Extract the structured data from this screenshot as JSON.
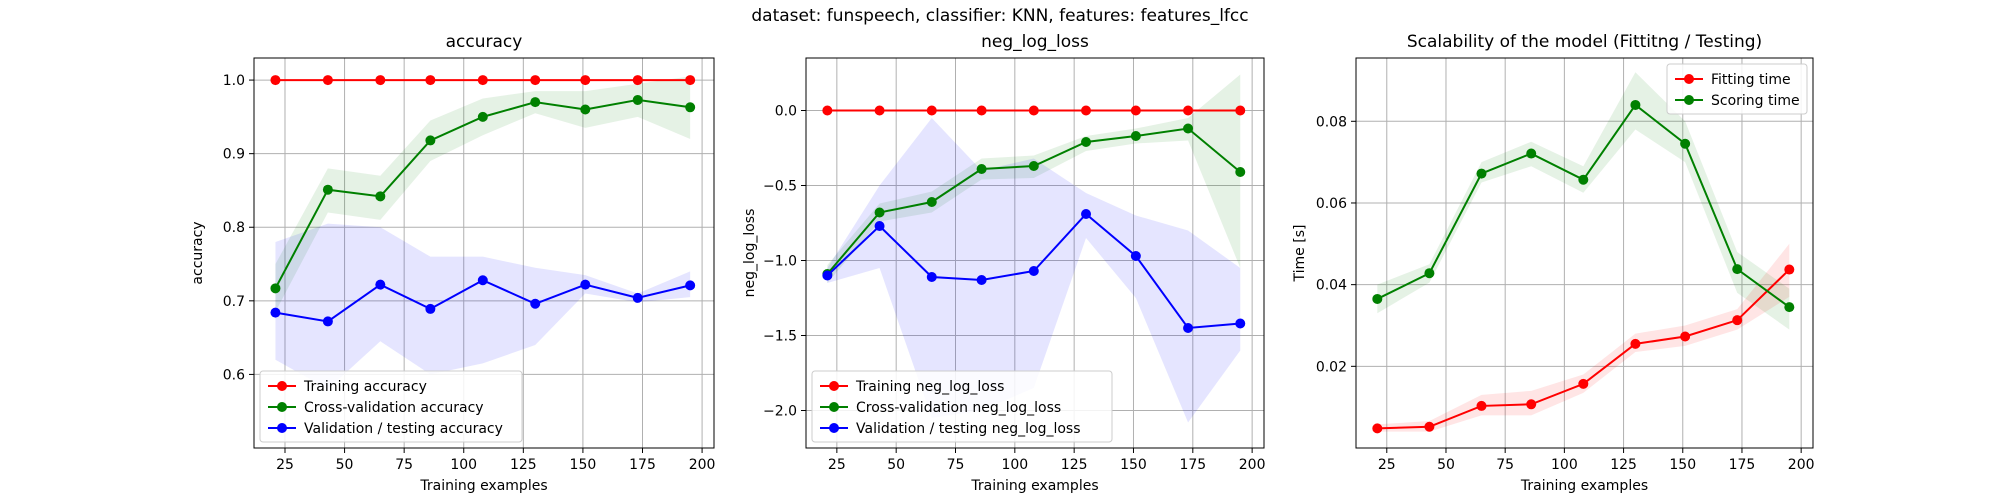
{
  "suptitle": "dataset: funspeech, classifier: KNN, features: features_lfcc",
  "chart_data": [
    {
      "type": "line",
      "title": "accuracy",
      "xlabel": "Training examples",
      "ylabel": "accuracy",
      "xlim": [
        12,
        205
      ],
      "ylim": [
        0.5,
        1.03
      ],
      "xticks": [
        25,
        50,
        75,
        100,
        125,
        150,
        175,
        200
      ],
      "yticks": [
        0.6,
        0.7,
        0.8,
        0.9,
        1.0
      ],
      "ytick_labels": [
        "0.6",
        "0.7",
        "0.8",
        "0.9",
        "1.0"
      ],
      "grid": true,
      "legend_position": "lower-left",
      "x": [
        21,
        43,
        65,
        86,
        108,
        130,
        151,
        173,
        195
      ],
      "series": [
        {
          "name": "Training accuracy",
          "color": "#ff0000",
          "values": [
            1.0,
            1.0,
            1.0,
            1.0,
            1.0,
            1.0,
            1.0,
            1.0,
            1.0
          ],
          "band_upper": [
            1.0,
            1.0,
            1.0,
            1.0,
            1.0,
            1.0,
            1.0,
            1.0,
            1.0
          ],
          "band_lower": [
            1.0,
            1.0,
            1.0,
            1.0,
            1.0,
            1.0,
            1.0,
            1.0,
            1.0
          ]
        },
        {
          "name": "Cross-validation accuracy",
          "color": "#008000",
          "values": [
            0.717,
            0.851,
            0.842,
            0.918,
            0.95,
            0.97,
            0.96,
            0.973,
            0.963
          ],
          "band_upper": [
            0.75,
            0.88,
            0.87,
            0.945,
            0.975,
            0.985,
            0.985,
            0.995,
            1.005
          ],
          "band_lower": [
            0.685,
            0.82,
            0.81,
            0.89,
            0.925,
            0.955,
            0.935,
            0.95,
            0.92
          ]
        },
        {
          "name": "Validation / testing accuracy",
          "color": "#0000ff",
          "values": [
            0.684,
            0.672,
            0.722,
            0.689,
            0.728,
            0.696,
            0.722,
            0.704,
            0.721
          ],
          "band_upper": [
            0.78,
            0.805,
            0.8,
            0.76,
            0.76,
            0.745,
            0.735,
            0.71,
            0.74
          ],
          "band_lower": [
            0.62,
            0.58,
            0.645,
            0.6,
            0.615,
            0.64,
            0.71,
            0.698,
            0.705
          ]
        }
      ]
    },
    {
      "type": "line",
      "title": "neg_log_loss",
      "xlabel": "Training examples",
      "ylabel": "neg_log_loss",
      "xlim": [
        12,
        205
      ],
      "ylim": [
        -2.25,
        0.35
      ],
      "xticks": [
        25,
        50,
        75,
        100,
        125,
        150,
        175,
        200
      ],
      "yticks": [
        -2.0,
        -1.5,
        -1.0,
        -0.5,
        0.0
      ],
      "ytick_labels": [
        "−2.0",
        "−1.5",
        "−1.0",
        "−0.5",
        "0.0"
      ],
      "grid": true,
      "legend_position": "lower-left",
      "x": [
        21,
        43,
        65,
        86,
        108,
        130,
        151,
        173,
        195
      ],
      "series": [
        {
          "name": "Training neg_log_loss",
          "color": "#ff0000",
          "values": [
            0,
            0,
            0,
            0,
            0,
            0,
            0,
            0,
            0
          ],
          "band_upper": [
            0,
            0,
            0,
            0,
            0,
            0,
            0,
            0,
            0
          ],
          "band_lower": [
            0,
            0,
            0,
            0,
            0,
            0,
            0,
            0,
            0
          ]
        },
        {
          "name": "Cross-validation neg_log_loss",
          "color": "#008000",
          "values": [
            -1.09,
            -0.68,
            -0.61,
            -0.39,
            -0.37,
            -0.21,
            -0.17,
            -0.12,
            -0.41
          ],
          "band_upper": [
            -1.03,
            -0.62,
            -0.54,
            -0.32,
            -0.3,
            -0.17,
            -0.12,
            -0.05,
            0.24
          ],
          "band_lower": [
            -1.15,
            -0.74,
            -0.68,
            -0.46,
            -0.45,
            -0.27,
            -0.22,
            -0.2,
            -1.05
          ]
        },
        {
          "name": "Validation / testing neg_log_loss",
          "color": "#0000ff",
          "values": [
            -1.1,
            -0.77,
            -1.11,
            -1.13,
            -1.07,
            -0.69,
            -0.97,
            -1.45,
            -1.42
          ],
          "band_upper": [
            -1.05,
            -0.5,
            -0.05,
            -0.4,
            -0.32,
            -0.55,
            -0.7,
            -0.8,
            -1.05
          ],
          "band_lower": [
            -1.15,
            -1.05,
            -2.05,
            -2.0,
            -1.85,
            -0.85,
            -1.25,
            -2.08,
            -1.6
          ]
        }
      ]
    },
    {
      "type": "line",
      "title": "Scalability of the model (Fittitng / Testing)",
      "xlabel": "Training examples",
      "ylabel": "Time [s]",
      "xlim": [
        12,
        205
      ],
      "ylim": [
        0.0,
        0.0955
      ],
      "xticks": [
        25,
        50,
        75,
        100,
        125,
        150,
        175,
        200
      ],
      "yticks": [
        0.02,
        0.04,
        0.06,
        0.08
      ],
      "ytick_labels": [
        "0.02",
        "0.04",
        "0.06",
        "0.08"
      ],
      "grid": true,
      "legend_position": "upper-right",
      "x": [
        21,
        43,
        65,
        86,
        108,
        130,
        151,
        173,
        195
      ],
      "series": [
        {
          "name": "Fitting time",
          "color": "#ff0000",
          "values": [
            0.0048,
            0.0052,
            0.0103,
            0.0107,
            0.0157,
            0.0255,
            0.0273,
            0.0313,
            0.0437
          ],
          "band_upper": [
            0.0058,
            0.0066,
            0.013,
            0.014,
            0.018,
            0.028,
            0.03,
            0.034,
            0.05
          ],
          "band_lower": [
            0.004,
            0.004,
            0.008,
            0.008,
            0.0135,
            0.0235,
            0.025,
            0.029,
            0.037
          ]
        },
        {
          "name": "Scoring time",
          "color": "#008000",
          "values": [
            0.0365,
            0.0428,
            0.0672,
            0.0721,
            0.0657,
            0.084,
            0.0745,
            0.0438,
            0.0345
          ],
          "band_upper": [
            0.04,
            0.045,
            0.07,
            0.075,
            0.069,
            0.092,
            0.08,
            0.048,
            0.039
          ],
          "band_lower": [
            0.033,
            0.0405,
            0.065,
            0.069,
            0.0625,
            0.078,
            0.07,
            0.038,
            0.029
          ]
        }
      ]
    }
  ]
}
